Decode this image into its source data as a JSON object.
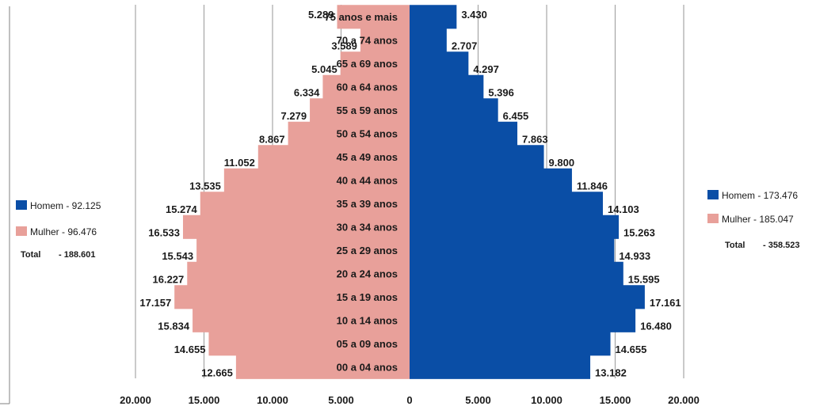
{
  "chart_data": {
    "type": "bar",
    "orientation": "horizontal-population-pyramid",
    "categories": [
      "00 a 04 anos",
      "05 a 09 anos",
      "10 a 14 anos",
      "15 a 19 anos",
      "20 a 24 anos",
      "25 a 29 anos",
      "30 a 34 anos",
      "35 a 39 anos",
      "40 a 44 anos",
      "45 a 49 anos",
      "50 a 54 anos",
      "55 a 59 anos",
      "60 a 64 anos",
      "65 a 69 anos",
      "70 a 74 anos",
      "75 anos e mais"
    ],
    "series": [
      {
        "side": "left",
        "values": [
          12665,
          14655,
          15834,
          17157,
          16227,
          15543,
          16533,
          15274,
          13535,
          11052,
          8867,
          7279,
          6334,
          5045,
          3589,
          5289
        ],
        "labels": [
          "12.665",
          "14.655",
          "15.834",
          "17.157",
          "16.227",
          "15.543",
          "16.533",
          "15.274",
          "13.535",
          "11.052",
          "8.867",
          "7.279",
          "6.334",
          "5.045",
          "3.589",
          "5.289"
        ]
      },
      {
        "side": "right",
        "values": [
          13182,
          14655,
          16480,
          17161,
          15595,
          14933,
          15263,
          14103,
          11846,
          9800,
          7863,
          6455,
          5396,
          4297,
          2707,
          3430
        ],
        "labels": [
          "13.182",
          "14.655",
          "16.480",
          "17.161",
          "15.595",
          "14.933",
          "15.263",
          "14.103",
          "11.846",
          "9.800",
          "7.863",
          "6.455",
          "5.396",
          "4.297",
          "2.707",
          "3.430"
        ]
      }
    ],
    "xlim": [
      -20000,
      20000
    ],
    "ticks": [
      -20000,
      -15000,
      -10000,
      -5000,
      0,
      5000,
      10000,
      15000,
      20000
    ],
    "tick_labels": [
      "20.000",
      "15.000",
      "10.000",
      "5.000",
      "0",
      "5.000",
      "10.000",
      "15.000",
      "20.000"
    ],
    "grid": true,
    "colors": {
      "homem": "#0a4ea6",
      "mulher": "#e8a09a",
      "grid": "#a6a6a6"
    }
  },
  "legend_left": {
    "homem": "Homem - 92.125",
    "mulher": "Mulher - 96.476",
    "total_label": "Total",
    "total_value": "- 188.601"
  },
  "legend_right": {
    "homem": "Homem  - 173.476",
    "mulher": "Mulher  -  185.047",
    "total_label": "Total",
    "total_value": "- 358.523"
  }
}
